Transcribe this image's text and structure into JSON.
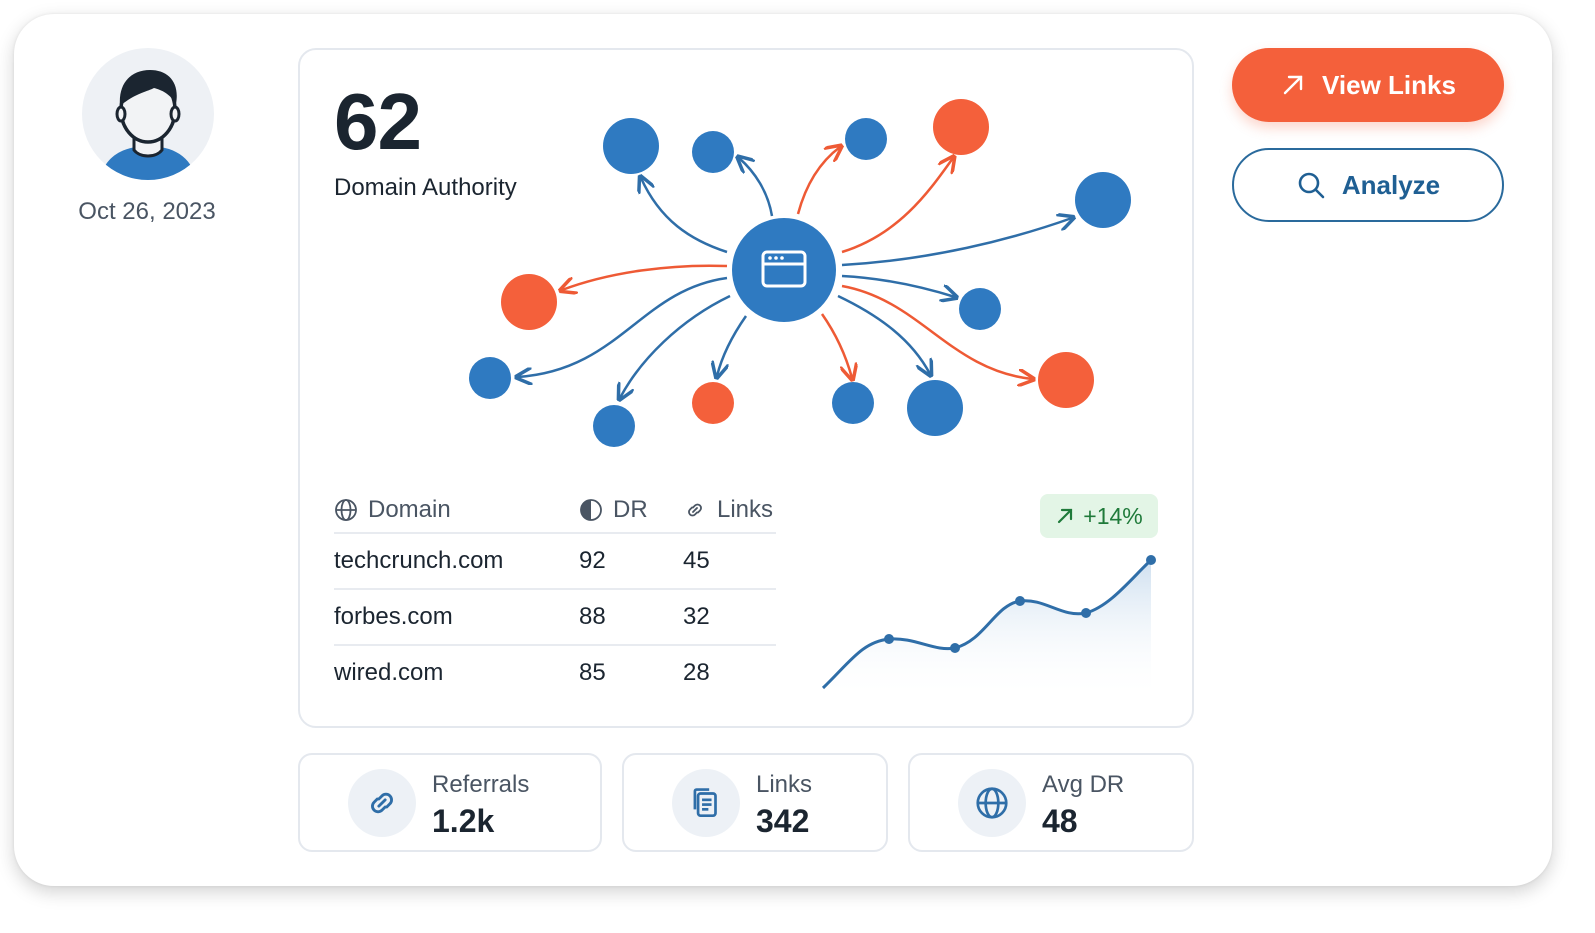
{
  "profile": {
    "date": "Oct 26, 2023"
  },
  "authority": {
    "value": "62",
    "label": "Domain Authority"
  },
  "actions": {
    "view_links": "View Links",
    "analyze": "Analyze"
  },
  "table": {
    "headers": {
      "domain": "Domain",
      "dr": "DR",
      "links": "Links"
    },
    "rows": [
      {
        "domain": "techcrunch.com",
        "dr": "92",
        "links": "45"
      },
      {
        "domain": "forbes.com",
        "dr": "88",
        "links": "32"
      },
      {
        "domain": "wired.com",
        "dr": "85",
        "links": "28"
      }
    ]
  },
  "trend": {
    "badge": "+14%"
  },
  "stats": [
    {
      "label": "Referrals",
      "value": "1.2k",
      "icon": "link-icon"
    },
    {
      "label": "Links",
      "value": "342",
      "icon": "document-icon"
    },
    {
      "label": "Avg DR",
      "value": "48",
      "icon": "globe-icon"
    }
  ],
  "colors": {
    "accent_orange": "#f4603b",
    "accent_blue": "#2f7ac1",
    "positive_green": "#1f7a3a"
  }
}
